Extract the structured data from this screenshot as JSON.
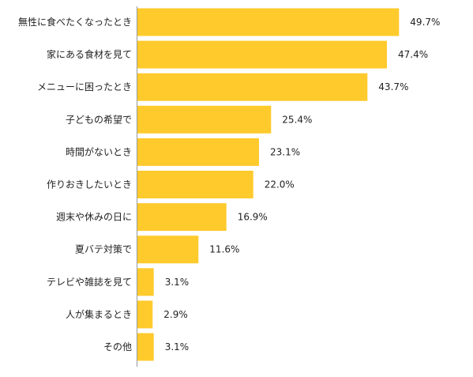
{
  "chart_data": {
    "type": "bar",
    "orientation": "horizontal",
    "categories": [
      "無性に食べたくなったとき",
      "家にある食材を見て",
      "メニューに困ったとき",
      "子どもの希望で",
      "時間がないとき",
      "作りおきしたいとき",
      "週末や休みの日に",
      "夏バテ対策で",
      "テレビや雑誌を見て",
      "人が集まるとき",
      "その他"
    ],
    "values": [
      49.7,
      47.4,
      43.7,
      25.4,
      23.1,
      22.0,
      16.9,
      11.6,
      3.1,
      2.9,
      3.1
    ],
    "value_labels": [
      "49.7%",
      "47.4%",
      "43.7%",
      "25.4%",
      "23.1%",
      "22.0%",
      "16.9%",
      "11.6%",
      "3.1%",
      "2.9%",
      "3.1%"
    ],
    "title": "",
    "xlabel": "",
    "ylabel": "",
    "xlim": [
      0,
      63
    ],
    "grid": false,
    "legend": "none",
    "bar_color": "#FFCA2C",
    "axis_color": "#999999"
  }
}
